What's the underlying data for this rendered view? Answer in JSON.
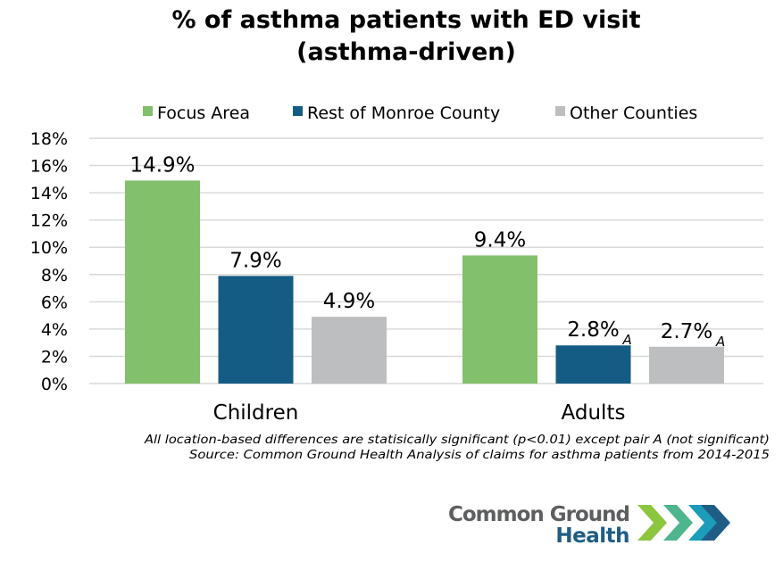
{
  "chart_data": {
    "type": "bar",
    "title_lines": [
      "% of asthma patients with ED visit",
      "(asthma-driven)"
    ],
    "categories": [
      "Children",
      "Adults"
    ],
    "series": [
      {
        "name": "Focus Area",
        "color": "#83c06b",
        "values": [
          14.9,
          9.4
        ],
        "labels": [
          "14.9%",
          "9.4%"
        ],
        "notes": [
          "",
          ""
        ]
      },
      {
        "name": "Rest of Monroe County",
        "color": "#155c85",
        "values": [
          7.9,
          2.8
        ],
        "labels": [
          "7.9%",
          "2.8%"
        ],
        "notes": [
          "",
          "A"
        ]
      },
      {
        "name": "Other Counties",
        "color": "#bdbec0",
        "values": [
          4.9,
          2.7
        ],
        "labels": [
          "4.9%",
          "2.7%"
        ],
        "notes": [
          "",
          "A"
        ]
      }
    ],
    "ylim": [
      0,
      18
    ],
    "yticks": [
      0,
      2,
      4,
      6,
      8,
      10,
      12,
      14,
      16,
      18
    ],
    "ytick_labels": [
      "0%",
      "2%",
      "4%",
      "6%",
      "8%",
      "10%",
      "12%",
      "14%",
      "16%",
      "18%"
    ],
    "grid": true,
    "legend_position": "top",
    "xlabel": "",
    "ylabel": ""
  },
  "footnotes": [
    "All location-based differences are statisically significant (p<0.01) except pair A (not significant)",
    "Source: Common Ground Health Analysis of claims for asthma patients from 2014-2015"
  ],
  "logo": {
    "line1": "Common Ground",
    "line2": "Health"
  }
}
